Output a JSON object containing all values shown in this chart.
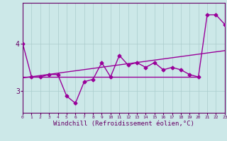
{
  "xlabel": "Windchill (Refroidissement éolien,°C)",
  "bg_color": "#cce8e8",
  "line_color": "#990099",
  "grid_color": "#aacccc",
  "x_data": [
    0,
    1,
    2,
    3,
    4,
    5,
    6,
    7,
    8,
    9,
    10,
    11,
    12,
    13,
    14,
    15,
    16,
    17,
    18,
    19,
    20,
    21,
    22,
    23
  ],
  "y_data": [
    4.0,
    3.3,
    3.3,
    3.35,
    3.35,
    2.9,
    2.75,
    3.2,
    3.25,
    3.6,
    3.3,
    3.75,
    3.55,
    3.6,
    3.5,
    3.6,
    3.45,
    3.5,
    3.45,
    3.35,
    3.3,
    4.6,
    4.6,
    4.4
  ],
  "trend_x": [
    0,
    23
  ],
  "trend_y": [
    3.28,
    3.85
  ],
  "flat_y": 3.3,
  "flat_x_end": 20,
  "ylim": [
    2.55,
    4.85
  ],
  "xlim": [
    0,
    23
  ],
  "yticks": [
    3,
    4
  ],
  "xtick_labels": [
    "0",
    "1",
    "2",
    "3",
    "4",
    "5",
    "6",
    "7",
    "8",
    "9",
    "10",
    "11",
    "12",
    "13",
    "14",
    "15",
    "16",
    "17",
    "18",
    "19",
    "20",
    "21",
    "22",
    "23"
  ],
  "axis_color": "#660066",
  "line_width": 1.0,
  "marker": "D",
  "marker_size": 2.5
}
